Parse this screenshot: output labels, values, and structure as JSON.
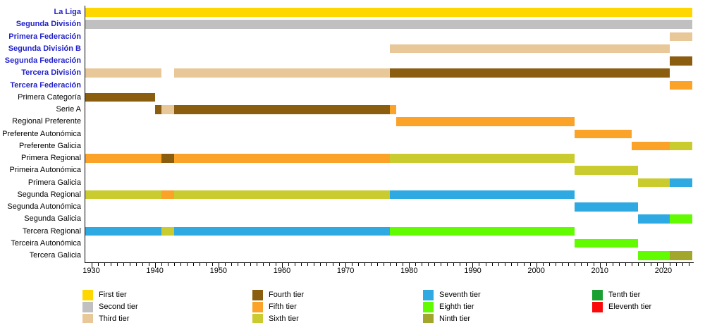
{
  "chart_data": {
    "type": "timeline",
    "description_visible_text_only": "League tier timeline bars per division",
    "x_axis": {
      "min_year": 1929,
      "max_year": 2024.5,
      "major_tick_years": [
        1930,
        1940,
        1950,
        1960,
        1970,
        1980,
        1990,
        2000,
        2010,
        2020
      ],
      "minor_tick_interval_years": 1,
      "grid": false
    },
    "tiers": [
      {
        "id": "first",
        "label": "First tier",
        "color": "#FFD700"
      },
      {
        "id": "second",
        "label": "Second tier",
        "color": "#C0C0C0"
      },
      {
        "id": "third",
        "label": "Third tier",
        "color": "#E8C898"
      },
      {
        "id": "fourth",
        "label": "Fourth tier",
        "color": "#8B5D0F"
      },
      {
        "id": "fifth",
        "label": "Fifth tier",
        "color": "#FAA328"
      },
      {
        "id": "sixth",
        "label": "Sixth tier",
        "color": "#C9CB2E"
      },
      {
        "id": "seventh",
        "label": "Seventh tier",
        "color": "#2FA9E1"
      },
      {
        "id": "eighth",
        "label": "Eighth tier",
        "color": "#63FB02"
      },
      {
        "id": "ninth",
        "label": "Ninth tier",
        "color": "#A2A62B"
      },
      {
        "id": "tenth",
        "label": "Tenth tier",
        "color": "#18A030"
      },
      {
        "id": "eleventh",
        "label": "Eleventh tier",
        "color": "#FA0A0A"
      }
    ],
    "legend_columns": [
      [
        "first",
        "second",
        "third"
      ],
      [
        "fourth",
        "fifth",
        "sixth"
      ],
      [
        "seventh",
        "eighth",
        "ninth"
      ],
      [
        "tenth",
        "eleventh"
      ]
    ],
    "rows": [
      {
        "label": "La Liga",
        "link": true,
        "segments": [
          {
            "tier": "first",
            "start": 1929,
            "end": 2024.5
          }
        ]
      },
      {
        "label": "Segunda División",
        "link": true,
        "segments": [
          {
            "tier": "second",
            "start": 1929,
            "end": 2024.5
          }
        ]
      },
      {
        "label": "Primera Federación",
        "link": true,
        "segments": [
          {
            "tier": "third",
            "start": 2021,
            "end": 2024.5
          }
        ]
      },
      {
        "label": "Segunda División B",
        "link": true,
        "segments": [
          {
            "tier": "third",
            "start": 1977,
            "end": 2021
          }
        ]
      },
      {
        "label": "Segunda Federación",
        "link": true,
        "segments": [
          {
            "tier": "fourth",
            "start": 2021,
            "end": 2024.5
          }
        ]
      },
      {
        "label": "Tercera División",
        "link": true,
        "segments": [
          {
            "tier": "third",
            "start": 1929,
            "end": 1941
          },
          {
            "tier": "third",
            "start": 1943,
            "end": 1977
          },
          {
            "tier": "fourth",
            "start": 1977,
            "end": 2021
          }
        ]
      },
      {
        "label": "Tercera Federación",
        "link": true,
        "segments": [
          {
            "tier": "fifth",
            "start": 2021,
            "end": 2024.5
          }
        ]
      },
      {
        "label": "Primera Categoría",
        "link": false,
        "segments": [
          {
            "tier": "fourth",
            "start": 1929,
            "end": 1940
          }
        ]
      },
      {
        "label": "Serie A",
        "link": false,
        "segments": [
          {
            "tier": "fourth",
            "start": 1940,
            "end": 1941
          },
          {
            "tier": "third",
            "start": 1941,
            "end": 1943
          },
          {
            "tier": "fourth",
            "start": 1943,
            "end": 1977
          },
          {
            "tier": "fifth",
            "start": 1977,
            "end": 1978
          }
        ]
      },
      {
        "label": "Regional Preferente",
        "link": false,
        "segments": [
          {
            "tier": "fifth",
            "start": 1978,
            "end": 2006
          }
        ]
      },
      {
        "label": "Preferente Autonómica",
        "link": false,
        "segments": [
          {
            "tier": "fifth",
            "start": 2006,
            "end": 2015
          }
        ]
      },
      {
        "label": "Preferente Galicia",
        "link": false,
        "segments": [
          {
            "tier": "fifth",
            "start": 2015,
            "end": 2021
          },
          {
            "tier": "sixth",
            "start": 2021,
            "end": 2024.5
          }
        ]
      },
      {
        "label": "Primera Regional",
        "link": false,
        "segments": [
          {
            "tier": "fifth",
            "start": 1929,
            "end": 1941
          },
          {
            "tier": "fourth",
            "start": 1941,
            "end": 1943
          },
          {
            "tier": "fifth",
            "start": 1943,
            "end": 1977
          },
          {
            "tier": "sixth",
            "start": 1977,
            "end": 2006
          }
        ]
      },
      {
        "label": "Primeira Autonómica",
        "link": false,
        "segments": [
          {
            "tier": "sixth",
            "start": 2006,
            "end": 2016
          }
        ]
      },
      {
        "label": "Primera Galicia",
        "link": false,
        "segments": [
          {
            "tier": "sixth",
            "start": 2016,
            "end": 2021
          },
          {
            "tier": "seventh",
            "start": 2021,
            "end": 2024.5
          }
        ]
      },
      {
        "label": "Segunda Regional",
        "link": false,
        "segments": [
          {
            "tier": "sixth",
            "start": 1929,
            "end": 1941
          },
          {
            "tier": "fifth",
            "start": 1941,
            "end": 1943
          },
          {
            "tier": "sixth",
            "start": 1943,
            "end": 1977
          },
          {
            "tier": "seventh",
            "start": 1977,
            "end": 2006
          }
        ]
      },
      {
        "label": "Segunda Autonómica",
        "link": false,
        "segments": [
          {
            "tier": "seventh",
            "start": 2006,
            "end": 2016
          }
        ]
      },
      {
        "label": "Segunda Galicia",
        "link": false,
        "segments": [
          {
            "tier": "seventh",
            "start": 2016,
            "end": 2021
          },
          {
            "tier": "eighth",
            "start": 2021,
            "end": 2024.5
          }
        ]
      },
      {
        "label": "Tercera Regional",
        "link": false,
        "segments": [
          {
            "tier": "seventh",
            "start": 1929,
            "end": 1941
          },
          {
            "tier": "sixth",
            "start": 1941,
            "end": 1943
          },
          {
            "tier": "seventh",
            "start": 1943,
            "end": 1977
          },
          {
            "tier": "eighth",
            "start": 1977,
            "end": 2006
          }
        ]
      },
      {
        "label": "Terceira Autonómica",
        "link": false,
        "segments": [
          {
            "tier": "eighth",
            "start": 2006,
            "end": 2016
          }
        ]
      },
      {
        "label": "Tercera Galicia",
        "link": false,
        "segments": [
          {
            "tier": "eighth",
            "start": 2016,
            "end": 2021
          },
          {
            "tier": "ninth",
            "start": 2021,
            "end": 2024.5
          }
        ]
      }
    ]
  }
}
